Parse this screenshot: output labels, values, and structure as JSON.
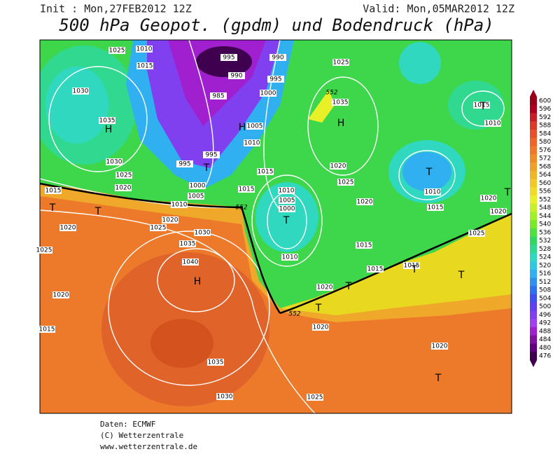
{
  "header": {
    "init": "Init : Mon,27FEB2012 12Z",
    "valid": "Valid: Mon,05MAR2012 12Z",
    "title": "500 hPa Geopot. (gpdm) und Bodendruck (hPa)"
  },
  "legend": {
    "labels": [
      "600",
      "596",
      "592",
      "588",
      "584",
      "580",
      "576",
      "572",
      "568",
      "564",
      "560",
      "556",
      "552",
      "548",
      "544",
      "540",
      "536",
      "532",
      "528",
      "524",
      "520",
      "516",
      "512",
      "508",
      "504",
      "500",
      "496",
      "492",
      "488",
      "484",
      "480",
      "476"
    ],
    "colors": [
      "#99001a",
      "#b00020",
      "#c81e28",
      "#dc3a28",
      "#e8502a",
      "#f06428",
      "#f07828",
      "#f08c28",
      "#f0a028",
      "#f0b428",
      "#f0c828",
      "#f0dc28",
      "#e8f028",
      "#c8f028",
      "#a0f028",
      "#78e828",
      "#50e040",
      "#30d860",
      "#30d890",
      "#30d8c0",
      "#30c8e0",
      "#30b0f0",
      "#3090f0",
      "#3070f0",
      "#4050f0",
      "#6040f0",
      "#8040f0",
      "#a040f0",
      "#a020d0",
      "#8010a0",
      "#600080",
      "#400050"
    ]
  },
  "map": {
    "isobar_labels": [
      "1025",
      "1010",
      "1015",
      "995",
      "990",
      "990",
      "995",
      "985",
      "1000",
      "1030",
      "1035",
      "1005",
      "1010",
      "995",
      "995",
      "1030",
      "1025",
      "1020",
      "1015",
      "1000",
      "1005",
      "1010",
      "1015",
      "1015",
      "1025",
      "1035",
      "1020",
      "1025",
      "1010",
      "1005",
      "1000",
      "1020",
      "1015",
      "1015",
      "1010",
      "1015",
      "1010",
      "1020",
      "1020",
      "1025",
      "1020",
      "1025",
      "1020",
      "1030",
      "1035",
      "1040",
      "1010",
      "1015",
      "1015",
      "1020",
      "1020",
      "1020",
      "1025",
      "1020",
      "1015",
      "1035",
      "1030",
      "1025"
    ],
    "height_labels": [
      "552",
      "552",
      "552"
    ],
    "centers": [
      "H",
      "H",
      "H",
      "H",
      "T",
      "T",
      "T",
      "T",
      "T",
      "T",
      "T",
      "T",
      "T",
      "T",
      "T",
      "T"
    ]
  },
  "footer": [
    "Daten: ECMWF",
    "(C) Wetterzentrale",
    "www.wetterzentrale.de"
  ]
}
